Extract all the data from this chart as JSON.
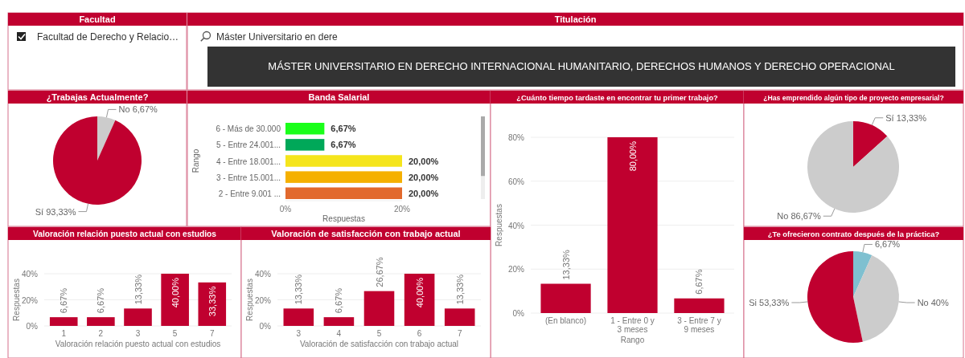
{
  "chart_data": [
    {
      "type": "other",
      "title": "Facultad",
      "annotations": [
        "Facultad de Derecho y Relacio…"
      ]
    },
    {
      "type": "other",
      "title": "Titulación",
      "annotations": [
        "Máster Universitario en dere",
        "MÁSTER UNIVERSITARIO EN DERECHO INTERNACIONAL HUMANITARIO, DERECHOS HUMANOS Y DERECHO OPERACIONAL"
      ]
    },
    {
      "type": "pie",
      "title": "¿Trabajas Actualmente?",
      "categories": [
        "No",
        "Sí"
      ],
      "values": [
        6.67,
        93.33
      ],
      "colors": [
        "#cccccc",
        "#c0002f"
      ],
      "value_labels": [
        "6,67%",
        "93,33%"
      ]
    },
    {
      "type": "bar",
      "orientation": "horizontal",
      "title": "Banda Salarial",
      "categories": [
        "6 - Más de 30.000",
        "5 - Entre 24.001...",
        "4 - Entre 18.001...",
        "3 - Entre 15.001...",
        "2 - Entre 9.001 ..."
      ],
      "values": [
        6.67,
        6.67,
        20,
        20,
        20
      ],
      "colors": [
        "#1aff1a",
        "#00a859",
        "#f5e51c",
        "#f5b000",
        "#e2692d"
      ],
      "value_labels": [
        "6,67%",
        "6,67%",
        "20,00%",
        "20,00%",
        "20,00%"
      ],
      "xlim": [
        0,
        20
      ],
      "xticks": [
        {
          "value": 0,
          "label": "0%"
        },
        {
          "value": 20,
          "label": "20%"
        }
      ],
      "xlabel": "Respuestas",
      "ylabel": "Rango"
    },
    {
      "type": "bar",
      "title": "¿Cuánto tiempo tardaste en encontrar tu primer trabajo?",
      "categories": [
        "(En blanco)",
        "1 - Entre 0 y 3 meses",
        "3 - Entre 7 y 9 meses"
      ],
      "values": [
        13.33,
        80,
        6.67
      ],
      "color": "#c0002f",
      "value_labels": [
        "13,33%",
        "80,00%",
        "6,67%"
      ],
      "ylim": [
        0,
        80
      ],
      "yticks": [
        {
          "value": 0,
          "label": "0%"
        },
        {
          "value": 20,
          "label": "20%"
        },
        {
          "value": 40,
          "label": "40%"
        },
        {
          "value": 60,
          "label": "60%"
        },
        {
          "value": 80,
          "label": "80%"
        }
      ],
      "xlabel": "Rango",
      "ylabel": "Respuestas",
      "grid": "y"
    },
    {
      "type": "pie",
      "title": "¿Has emprendido algún tipo de proyecto empresarial?",
      "categories": [
        "Sí",
        "No"
      ],
      "values": [
        13.33,
        86.67
      ],
      "colors": [
        "#c0002f",
        "#cccccc"
      ],
      "value_labels": [
        "13,33%",
        "86,67%"
      ]
    },
    {
      "type": "bar",
      "title": "Valoración relación puesto actual con estudios",
      "categories": [
        "1",
        "2",
        "3",
        "5",
        "7"
      ],
      "values": [
        6.67,
        6.67,
        13.33,
        40,
        33.33
      ],
      "color": "#c0002f",
      "value_labels": [
        "6,67%",
        "6,67%",
        "13,33%",
        "40,00%",
        "33,33%"
      ],
      "ylim": [
        0,
        40
      ],
      "yticks": [
        {
          "value": 0,
          "label": "0%"
        },
        {
          "value": 20,
          "label": "20%"
        },
        {
          "value": 40,
          "label": "40%"
        }
      ],
      "xlabel": "Valoración relación puesto actual con estudios",
      "ylabel": "Respuestas",
      "grid": "y"
    },
    {
      "type": "bar",
      "title": "Valoración de satisfacción con trabajo actual",
      "categories": [
        "3",
        "4",
        "5",
        "6",
        "7"
      ],
      "values": [
        13.33,
        6.67,
        26.67,
        40,
        13.33
      ],
      "color": "#c0002f",
      "value_labels": [
        "13,33%",
        "6,67%",
        "26,67%",
        "40,00%",
        "13,33%"
      ],
      "ylim": [
        0,
        40
      ],
      "yticks": [
        {
          "value": 0,
          "label": "0%"
        },
        {
          "value": 20,
          "label": "20%"
        },
        {
          "value": 40,
          "label": "40%"
        }
      ],
      "xlabel": "Valoración de satisfacción con trabajo actual",
      "ylabel": "Respuestas",
      "grid": "y"
    },
    {
      "type": "pie",
      "title": "¿Te ofrecieron contrato después de la práctica?",
      "categories": [
        null,
        "No",
        "Si"
      ],
      "values": [
        6.67,
        40,
        53.33
      ],
      "colors": [
        "#7fc0d0",
        "#cccccc",
        "#c0002f"
      ],
      "value_labels": [
        "6,67%",
        "40%",
        "53,33%"
      ]
    }
  ]
}
